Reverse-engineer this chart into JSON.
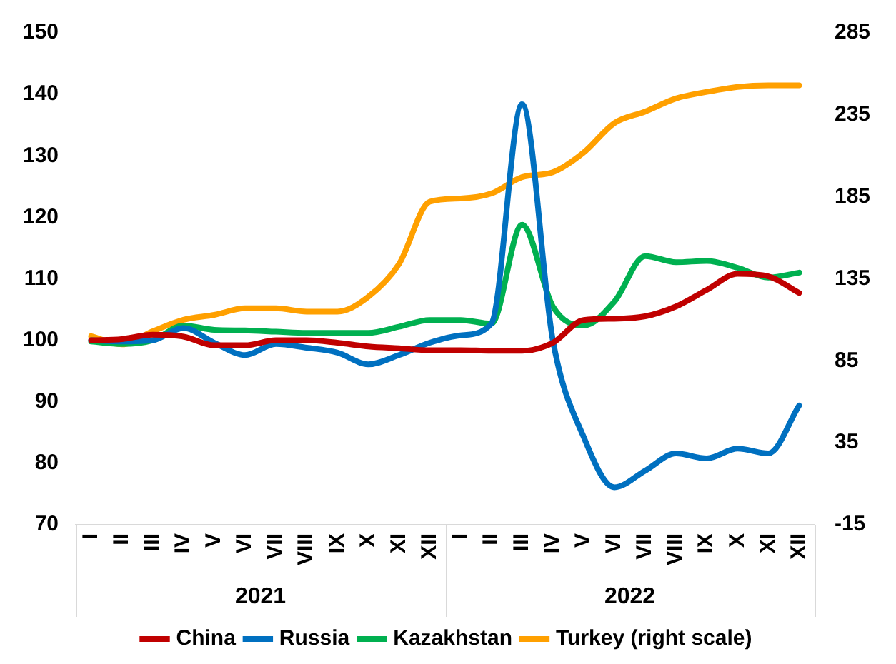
{
  "chart_data": {
    "type": "line",
    "categories": [
      "I",
      "II",
      "III",
      "IV",
      "V",
      "VI",
      "VII",
      "VIII",
      "IX",
      "X",
      "XI",
      "XII",
      "I",
      "II",
      "III",
      "IV",
      "V",
      "VI",
      "VII",
      "VIII",
      "IX",
      "X",
      "XI",
      "XII"
    ],
    "annotations": [
      "2021",
      "2022"
    ],
    "series": [
      {
        "name": "China",
        "color": "#c00000",
        "values": [
          100,
          100.2,
          100.9,
          100.6,
          99.2,
          99.2,
          100,
          100,
          99.6,
          99,
          98.7,
          98.4,
          98.4,
          98.3,
          98.3,
          99.6,
          103.3,
          103.5,
          103.9,
          105.5,
          108.2,
          110.8,
          110.4,
          107.7
        ]
      },
      {
        "name": "Russia",
        "color": "#0070c0",
        "values": [
          100,
          99.8,
          100,
          102,
          99.6,
          97.6,
          99.4,
          98.8,
          98,
          96.1,
          97.6,
          99.6,
          100.8,
          102.7,
          138.4,
          100,
          84.3,
          76.1,
          78.8,
          81.6,
          80.8,
          82.4,
          81.6,
          89.4
        ]
      },
      {
        "name": "Kazakhstan",
        "color": "#00b050",
        "values": [
          99.8,
          99.4,
          100,
          102.4,
          101.7,
          101.6,
          101.4,
          101.2,
          101.2,
          101.2,
          102.2,
          103.3,
          103.3,
          102.7,
          118.8,
          105.5,
          102.4,
          106.3,
          113.7,
          112.7,
          112.9,
          111.8,
          110.2,
          111
        ]
      },
      {
        "name": "Turkey (right scale)",
        "color": "#ffa000",
        "axis": "y2",
        "values": [
          100,
          95,
          103,
          110,
          113,
          117,
          117,
          115,
          115,
          124,
          144,
          182,
          184,
          187,
          197,
          200,
          212,
          230,
          237,
          245,
          249,
          252,
          253,
          253
        ]
      }
    ],
    "ylim": [
      70,
      150
    ],
    "yticks": [
      70,
      80,
      90,
      100,
      110,
      120,
      130,
      140,
      150
    ],
    "y2lim": [
      -15,
      285
    ],
    "y2ticks": [
      -15,
      35,
      85,
      135,
      185,
      235,
      285
    ],
    "grid": false,
    "legend": "bottom",
    "marker": "none",
    "line_style": "solid"
  }
}
